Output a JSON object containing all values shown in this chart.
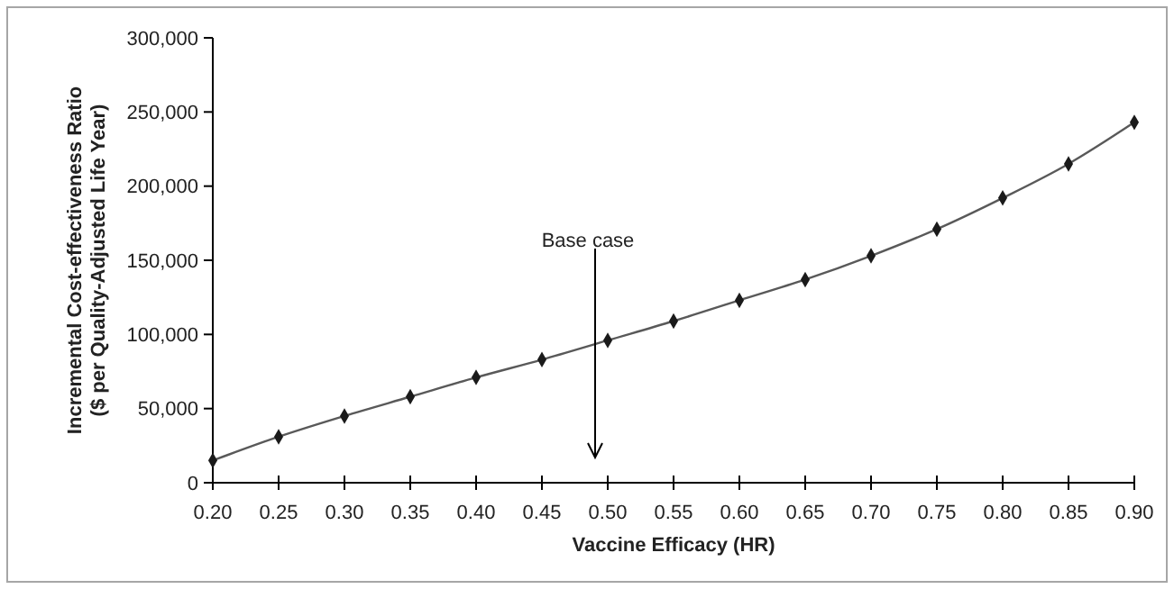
{
  "chart_data": {
    "type": "line",
    "xlabel": "Vaccine Efficacy (HR)",
    "ylabel": "Incremental Cost-effectiveness Ratio\n($ per Quality-Adjusted Life Year)",
    "x": [
      0.2,
      0.25,
      0.3,
      0.35,
      0.4,
      0.45,
      0.5,
      0.55,
      0.6,
      0.65,
      0.7,
      0.75,
      0.8,
      0.85,
      0.9
    ],
    "series": [
      {
        "color": "#595959",
        "values": [
          15000,
          31000,
          45000,
          58000,
          71000,
          83000,
          96000,
          109000,
          123000,
          137000,
          153000,
          171000,
          192000,
          215000,
          243000
        ]
      }
    ],
    "xlim": [
      0.2,
      0.9
    ],
    "xticks": [
      {
        "value": 0.2,
        "label": "0.20"
      },
      {
        "value": 0.25,
        "label": "0.25"
      },
      {
        "value": 0.3,
        "label": "0.30"
      },
      {
        "value": 0.35,
        "label": "0.35"
      },
      {
        "value": 0.4,
        "label": "0.40"
      },
      {
        "value": 0.45,
        "label": "0.45"
      },
      {
        "value": 0.5,
        "label": "0.50"
      },
      {
        "value": 0.55,
        "label": "0.55"
      },
      {
        "value": 0.6,
        "label": "0.60"
      },
      {
        "value": 0.65,
        "label": "0.65"
      },
      {
        "value": 0.7,
        "label": "0.70"
      },
      {
        "value": 0.75,
        "label": "0.75"
      },
      {
        "value": 0.8,
        "label": "0.80"
      },
      {
        "value": 0.85,
        "label": "0.85"
      },
      {
        "value": 0.9,
        "label": "0.90"
      }
    ],
    "ylim": [
      0,
      300000
    ],
    "yticks": [
      0,
      {
        "value": 50000,
        "label": "50,000"
      },
      {
        "value": 100000,
        "label": "100,000"
      },
      {
        "value": 150000,
        "label": "150,000"
      },
      {
        "value": 200000,
        "label": "200,000"
      },
      {
        "value": 250000,
        "label": "250,000"
      },
      {
        "value": 300000,
        "label": "300,000"
      }
    ],
    "annotations": [
      "Base case"
    ],
    "marker": "diamond",
    "grid": false
  }
}
